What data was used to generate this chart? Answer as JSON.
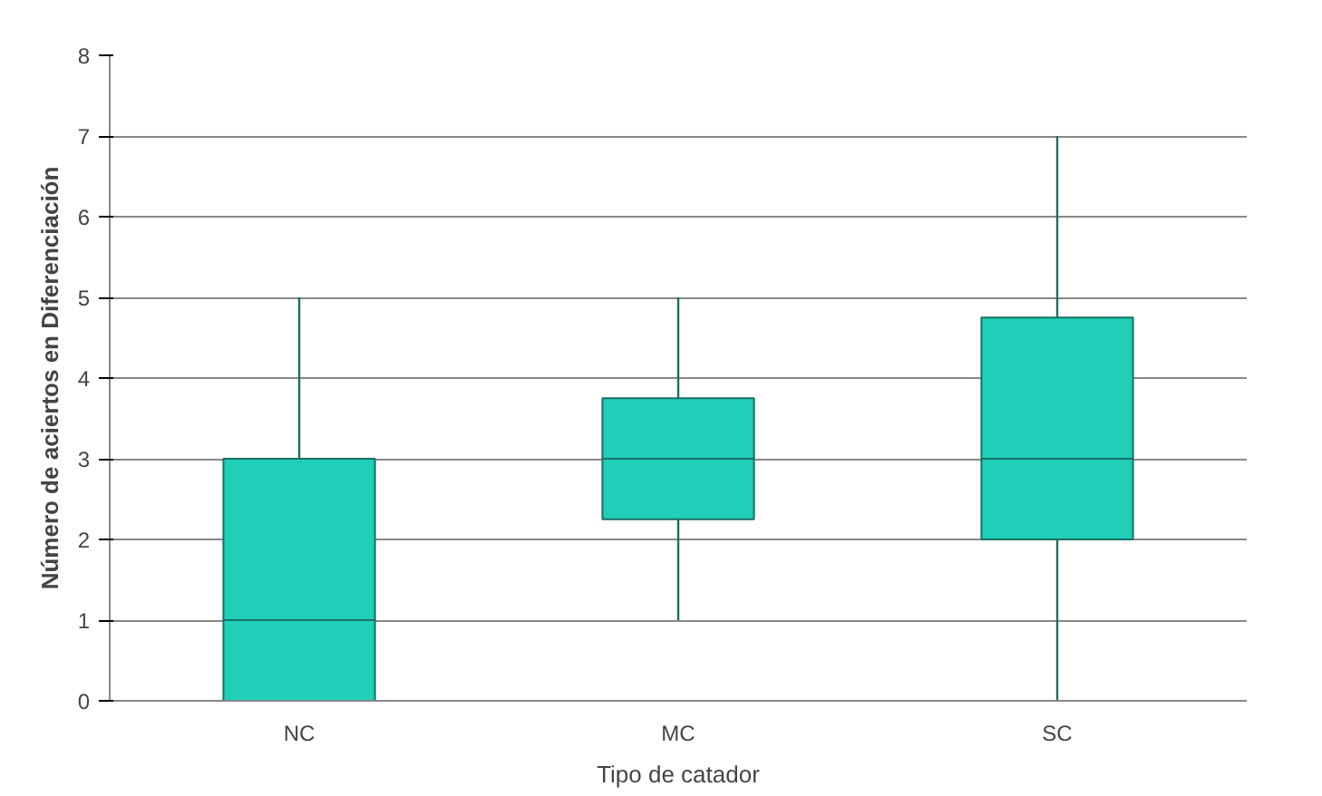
{
  "chart_data": {
    "type": "box",
    "xlabel": "Tipo de catador",
    "ylabel": "Número de aciertos en Diferenciación",
    "categories": [
      "NC",
      "MC",
      "SC"
    ],
    "boxes": [
      {
        "low": 0,
        "q1": 0,
        "median": 1,
        "q3": 3,
        "high": 5
      },
      {
        "low": 1,
        "q1": 2.25,
        "median": 3,
        "q3": 3.75,
        "high": 5
      },
      {
        "low": 0,
        "q1": 2,
        "median": 3,
        "q3": 4.75,
        "high": 7
      }
    ],
    "color": "#1fcfb8",
    "ylim": [
      0,
      8
    ],
    "yticks": [
      0,
      1,
      2,
      3,
      4,
      5,
      6,
      7,
      8
    ],
    "grid": "y"
  }
}
